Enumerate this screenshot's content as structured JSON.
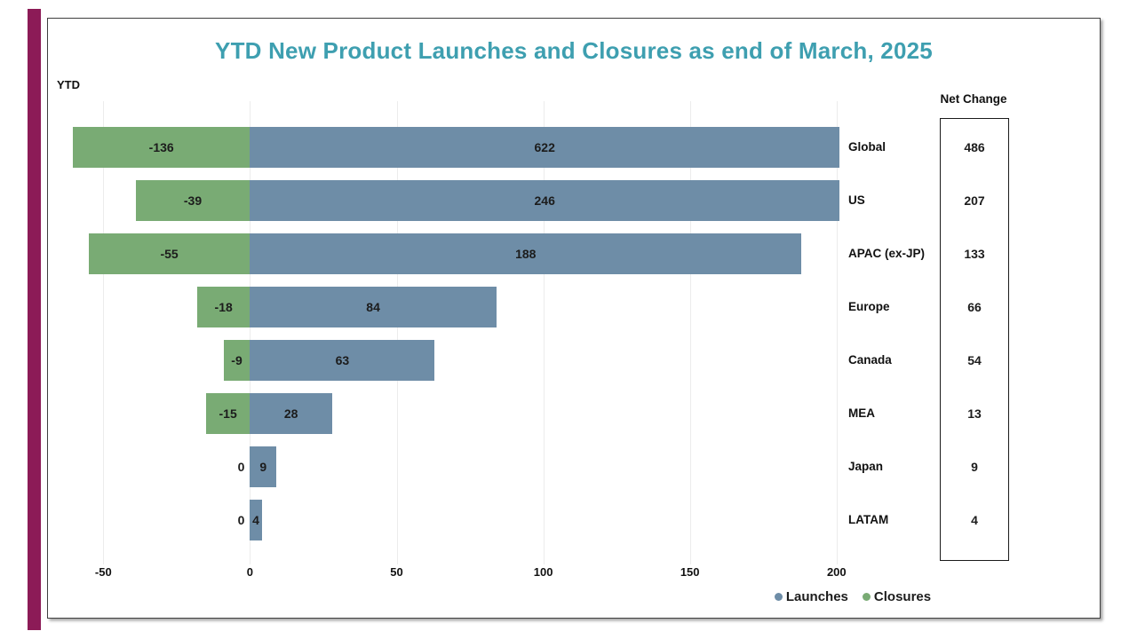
{
  "title": "YTD New Product Launches and Closures as end of March, 2025",
  "corner_label": "YTD",
  "net_change_header": "Net Change",
  "legend": {
    "items": [
      {
        "label": "Launches",
        "color": "#6e8da7"
      },
      {
        "label": "Closures",
        "color": "#79ab74"
      }
    ]
  },
  "colors": {
    "launches_bar": "#6e8da7",
    "closures_bar": "#79ab74",
    "title_text": "#3e9fb0",
    "accent_stripe": "#8c1b57",
    "gridline": "#ececec",
    "frame_border": "#3f3f3f"
  },
  "chart_data": {
    "type": "bar",
    "orientation": "horizontal",
    "title": "YTD New Product Launches and Closures as end of March, 2025",
    "categories": [
      "Global",
      "US",
      "APAC (ex-JP)",
      "Europe",
      "Canada",
      "MEA",
      "Japan",
      "LATAM"
    ],
    "series": [
      {
        "name": "Launches",
        "color": "#6e8da7",
        "values": [
          622,
          246,
          188,
          84,
          63,
          28,
          9,
          4
        ]
      },
      {
        "name": "Closures",
        "color": "#79ab74",
        "values": [
          -136,
          -39,
          -55,
          -18,
          -9,
          -15,
          0,
          0
        ]
      }
    ],
    "net_change_label": "Net Change",
    "net_change_values": [
      486,
      207,
      133,
      66,
      54,
      13,
      9,
      4
    ],
    "x_ticks": [
      -50,
      0,
      50,
      100,
      150,
      200
    ],
    "xlim": [
      -60.4,
      201
    ],
    "grid": "vertical-light",
    "legend_position": "bottom-right",
    "value_labels": "inside-bars, zeros shown left of axis",
    "note_clipping": "Launches bars for Global (622) and US (246) are clipped at the right axis limit"
  }
}
